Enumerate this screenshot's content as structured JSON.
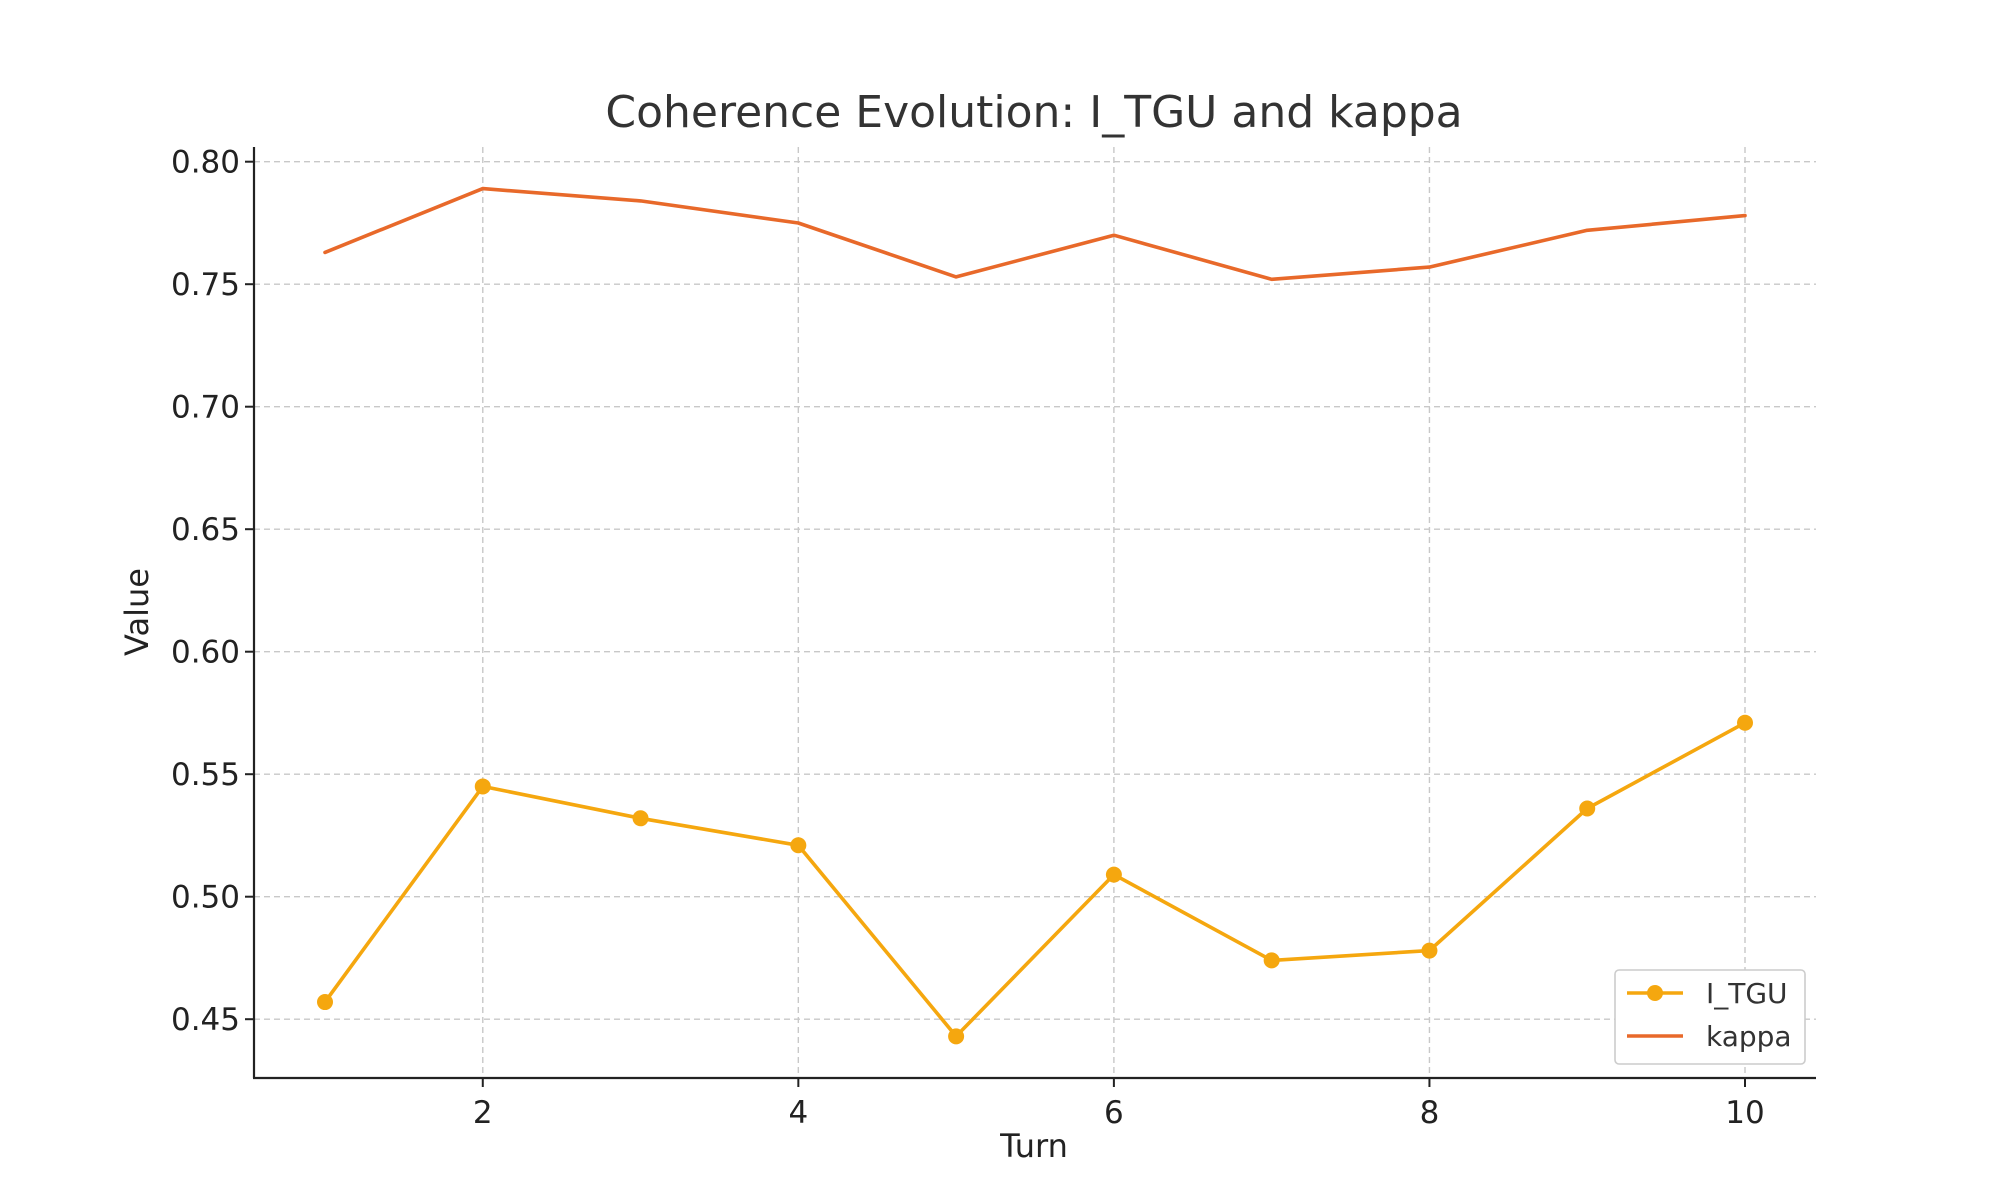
{
  "chart_data": {
    "type": "line",
    "title": "Coherence Evolution: I_TGU and kappa",
    "xlabel": "Turn",
    "ylabel": "Value",
    "x": [
      1,
      2,
      3,
      4,
      5,
      6,
      7,
      8,
      9,
      10
    ],
    "xlim": [
      0.55,
      10.45
    ],
    "ylim": [
      0.426,
      0.806
    ],
    "x_ticks": [
      2,
      4,
      6,
      8,
      10
    ],
    "x_tick_labels": [
      "2",
      "4",
      "6",
      "8",
      "10"
    ],
    "y_ticks": [
      0.45,
      0.5,
      0.55,
      0.6,
      0.65,
      0.7,
      0.75,
      0.8
    ],
    "y_tick_labels": [
      "0.45",
      "0.50",
      "0.55",
      "0.60",
      "0.65",
      "0.70",
      "0.75",
      "0.80"
    ],
    "grid": true,
    "legend_position": "lower-right",
    "series": [
      {
        "name": "I_TGU",
        "color": "#f5a70f",
        "marker": "circle",
        "values": [
          0.457,
          0.545,
          0.532,
          0.521,
          0.443,
          0.509,
          0.474,
          0.478,
          0.536,
          0.571
        ]
      },
      {
        "name": "kappa",
        "color": "#e8692a",
        "marker": "none",
        "values": [
          0.763,
          0.789,
          0.784,
          0.775,
          0.753,
          0.77,
          0.752,
          0.757,
          0.772,
          0.778
        ]
      }
    ]
  }
}
